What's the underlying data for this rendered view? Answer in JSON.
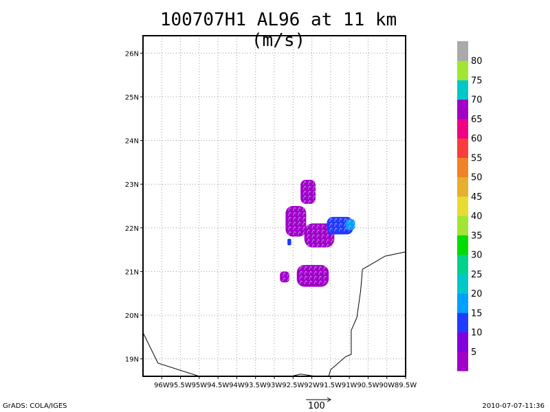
{
  "title": "100707H1 AL96 at 11 km (m/s)",
  "footer": {
    "left": "GrADS: COLA/IGES",
    "right": "2010-07-07-11:36",
    "vector_reference": "100"
  },
  "chart_data": {
    "type": "heatmap",
    "title": "100707H1 AL96 at 11 km (m/s)",
    "x_axis": {
      "range": [
        -96.5,
        -89.5
      ],
      "ticks": [
        -96,
        -95.5,
        -95,
        -94.5,
        -94,
        -93.5,
        -93,
        -92.5,
        -92,
        -91.5,
        -91,
        -90.5,
        -90,
        -89.5
      ],
      "tick_labels": [
        "96W",
        "95.5W",
        "95W",
        "94.5W",
        "94W",
        "93.5W",
        "93W",
        "92.5W",
        "92W",
        "91.5W",
        "91W",
        "90.5W",
        "90W",
        "89.5W"
      ]
    },
    "y_axis": {
      "range": [
        18.6,
        26.4
      ],
      "ticks": [
        19,
        20,
        21,
        22,
        23,
        24,
        25,
        26
      ],
      "tick_labels": [
        "19N",
        "20N",
        "21N",
        "22N",
        "23N",
        "24N",
        "25N",
        "26N"
      ]
    },
    "grid": true,
    "colorbar": {
      "position": "right",
      "labels": [
        "5",
        "10",
        "15",
        "20",
        "25",
        "30",
        "35",
        "40",
        "45",
        "50",
        "55",
        "60",
        "65",
        "70",
        "75",
        "80"
      ],
      "colors": [
        "#a000c8",
        "#8200dc",
        "#1e3cff",
        "#00a0ff",
        "#00c8c8",
        "#00d28c",
        "#00dc00",
        "#a0e632",
        "#e6dc32",
        "#e6af2d",
        "#f08228",
        "#fa3c3c",
        "#f00082",
        "#a000c8",
        "#00c8c8",
        "#a0e632",
        "#aaaaaa"
      ]
    },
    "patches": [
      {
        "id": "north-lobe",
        "lon": [
          -92.3,
          -91.9
        ],
        "lat": [
          22.55,
          23.1
        ],
        "value": 5
      },
      {
        "id": "central-west",
        "lon": [
          -92.7,
          -92.15
        ],
        "lat": [
          21.8,
          22.5
        ],
        "value": 5
      },
      {
        "id": "central-east",
        "lon": [
          -92.2,
          -91.4
        ],
        "lat": [
          21.55,
          22.1
        ],
        "value": 5
      },
      {
        "id": "east-arm",
        "lon": [
          -91.6,
          -90.9
        ],
        "lat": [
          21.85,
          22.25
        ],
        "value": 15
      },
      {
        "id": "east-arm-tip",
        "lon": [
          -91.1,
          -90.85
        ],
        "lat": [
          21.95,
          22.2
        ],
        "value": 20
      },
      {
        "id": "southeast-blob",
        "lon": [
          -92.4,
          -91.55
        ],
        "lat": [
          20.65,
          21.15
        ],
        "value": 5
      },
      {
        "id": "small-west",
        "lon": [
          -92.85,
          -92.6
        ],
        "lat": [
          20.75,
          21.0
        ],
        "value": 5
      },
      {
        "id": "south-fleck",
        "lon": [
          -92.65,
          -92.55
        ],
        "lat": [
          21.6,
          21.75
        ],
        "value": 15
      }
    ],
    "coastlines": [
      {
        "id": "mexico-west",
        "points": [
          [
            -96.5,
            19.6
          ],
          [
            -96.1,
            18.9
          ],
          [
            -95.0,
            18.6
          ]
        ]
      },
      {
        "id": "mexico-east",
        "points": [
          [
            -92.55,
            18.6
          ],
          [
            -92.3,
            18.65
          ],
          [
            -91.9,
            18.6
          ]
        ]
      },
      {
        "id": "yucatan",
        "points": [
          [
            -91.55,
            18.6
          ],
          [
            -91.5,
            18.75
          ],
          [
            -91.1,
            19.05
          ],
          [
            -90.95,
            19.1
          ],
          [
            -90.95,
            19.65
          ],
          [
            -90.8,
            19.95
          ],
          [
            -90.7,
            20.55
          ],
          [
            -90.65,
            21.05
          ],
          [
            -90.35,
            21.2
          ],
          [
            -90.05,
            21.35
          ],
          [
            -89.5,
            21.45
          ]
        ]
      }
    ]
  }
}
